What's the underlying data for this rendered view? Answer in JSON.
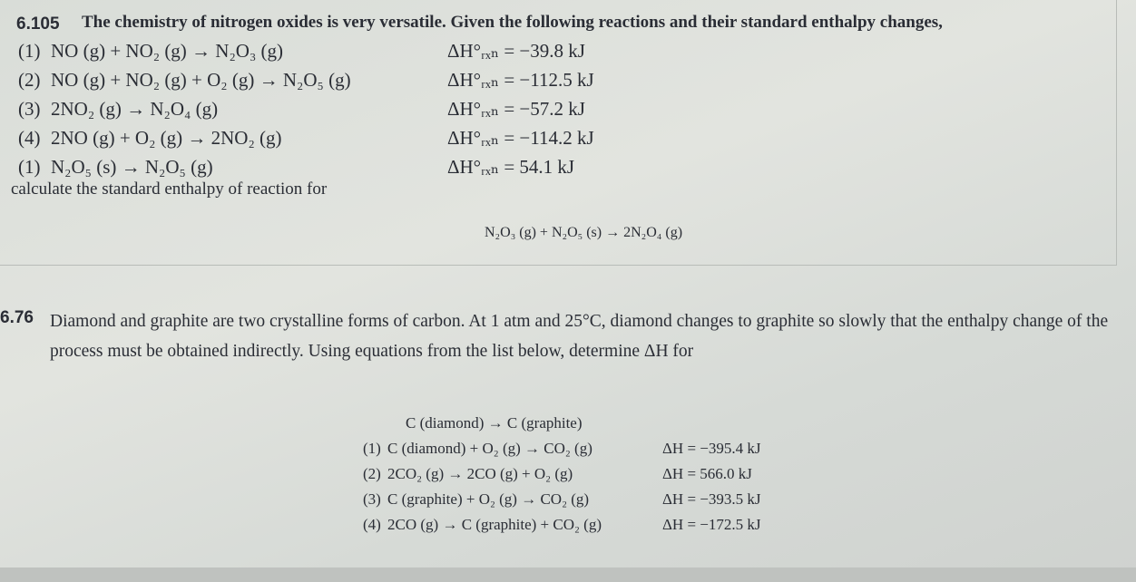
{
  "problems": [
    {
      "number": "6.105",
      "text": "The chemistry of nitrogen oxides is very versatile. Given the following reactions and their standard enthalpy changes,",
      "reactions": [
        {
          "label": "(1)",
          "equation": "NO (g) + NO₂ (g) → N₂O₃ (g)",
          "enthalpy": "ΔH°ᵣₓₙ = −39.8 kJ"
        },
        {
          "label": "(2)",
          "equation": "NO (g) + NO₂ (g) + O₂ (g) → N₂O₅ (g)",
          "enthalpy": "ΔH°ᵣₓₙ = −112.5 kJ"
        },
        {
          "label": "(3)",
          "equation": "2NO₂ (g) → N₂O₄ (g)",
          "enthalpy": "ΔH°ᵣₓₙ = −57.2 kJ"
        },
        {
          "label": "(4)",
          "equation": "2NO (g) + O₂ (g) → 2NO₂ (g)",
          "enthalpy": "ΔH°ᵣₓₙ = −114.2 kJ"
        },
        {
          "label": "(1)",
          "equation": "N₂O₅ (s) → N₂O₅ (g)",
          "enthalpy": "ΔH°ᵣₓₙ = 54.1 kJ"
        }
      ],
      "prompt": "calculate the standard enthalpy of reaction for",
      "target": "N₂O₃ (g) + N₂O₅ (s) → 2N₂O₄ (g)"
    },
    {
      "number": "6.76",
      "text": "Diamond and graphite are two crystalline forms of carbon. At 1 atm and 25°C, diamond changes to graphite so slowly that the enthalpy change of the process must be obtained indirectly. Using equations from the list below, determine ΔH for",
      "target": "C (diamond) → C (graphite)",
      "reactions": [
        {
          "label": "(1)",
          "equation": "C (diamond) + O₂ (g) → CO₂ (g)",
          "enthalpy": "ΔH = −395.4 kJ"
        },
        {
          "label": "(2)",
          "equation": "2CO₂ (g) → 2CO (g) + O₂ (g)",
          "enthalpy": "ΔH = 566.0 kJ"
        },
        {
          "label": "(3)",
          "equation": "C (graphite) + O₂ (g) → CO₂ (g)",
          "enthalpy": "ΔH = −393.5 kJ"
        },
        {
          "label": "(4)",
          "equation": "2CO (g) → C (graphite) + CO₂ (g)",
          "enthalpy": "ΔH = −172.5 kJ"
        }
      ]
    }
  ]
}
